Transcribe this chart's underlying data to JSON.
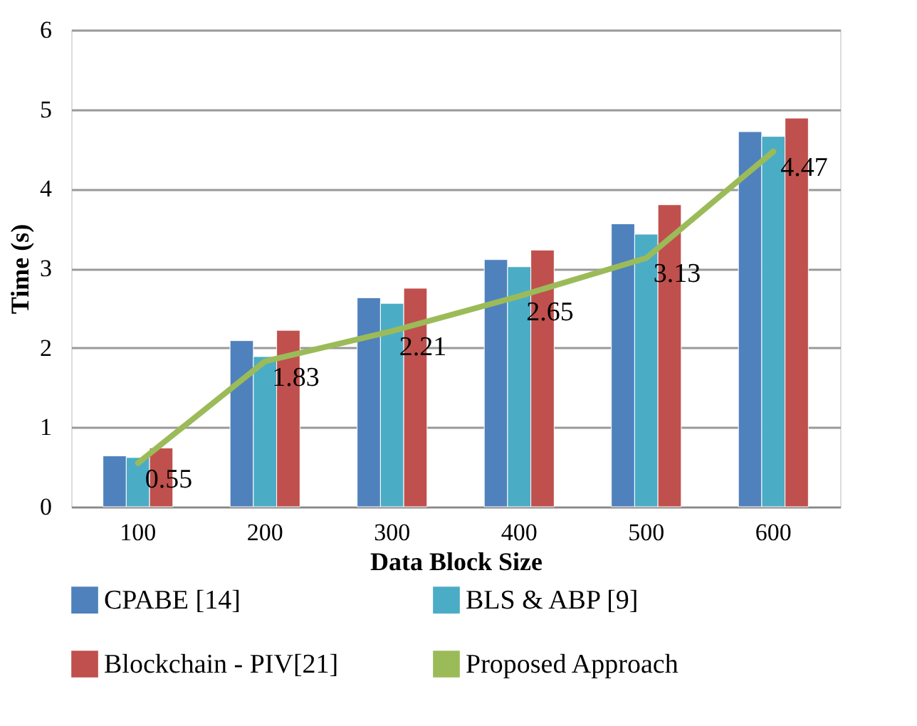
{
  "chart_data": {
    "type": "bar",
    "xlabel": "Data Block Size",
    "ylabel": "Time (s)",
    "categories": [
      "100",
      "200",
      "300",
      "400",
      "500",
      "600"
    ],
    "series": [
      {
        "name": "CPABE [14]",
        "color": "#4f81bd",
        "values": [
          0.64,
          2.09,
          2.63,
          3.11,
          3.56,
          4.72
        ]
      },
      {
        "name": "BLS & ABP [9]",
        "color": "#4bacc6",
        "values": [
          0.62,
          1.89,
          2.56,
          3.02,
          3.43,
          4.66
        ]
      },
      {
        "name": "Blockchain - PIV[21]",
        "color": "#c0504d",
        "values": [
          0.74,
          2.22,
          2.75,
          3.23,
          3.8,
          4.89
        ]
      },
      {
        "name": "Proposed Approach",
        "type": "line",
        "color": "#9bbb59",
        "values": [
          0.55,
          1.83,
          2.21,
          2.65,
          3.13,
          4.47
        ],
        "value_labels": [
          "0.55",
          "1.83",
          "2.21",
          "2.65",
          "3.13",
          "4.47"
        ]
      }
    ],
    "ylim": [
      0,
      6
    ],
    "yticks": [
      0,
      1,
      2,
      3,
      4,
      5,
      6
    ],
    "grid": "y",
    "legend": "bottom",
    "marker": "none",
    "line_style": "solid"
  }
}
